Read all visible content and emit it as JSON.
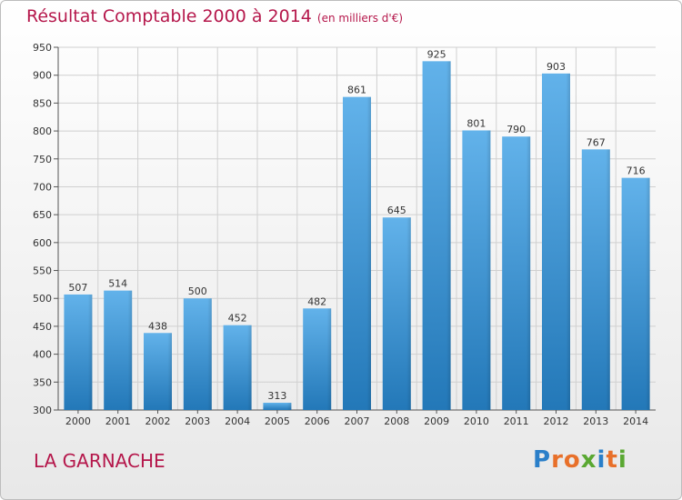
{
  "header": {
    "title": "Résultat Comptable 2000 à 2014",
    "subtitle": "(en milliers d'€)"
  },
  "footer": {
    "town": "LA GARNACHE",
    "logo_text": "Proxiti"
  },
  "colors": {
    "title": "#b5174b",
    "bar_top": "#62b2ea",
    "bar_bottom": "#2378b8",
    "grid": "#d0d0d0",
    "logo": [
      "#2a7fc9",
      "#e8702a",
      "#e8702a",
      "#5aa832",
      "#2a7fc9",
      "#e8702a",
      "#5aa832"
    ]
  },
  "chart_data": {
    "type": "bar",
    "title": "Résultat Comptable 2000 à 2014",
    "subtitle": "(en milliers d'€)",
    "xlabel": "",
    "ylabel": "",
    "categories": [
      "2000",
      "2001",
      "2002",
      "2003",
      "2004",
      "2005",
      "2006",
      "2007",
      "2008",
      "2009",
      "2010",
      "2011",
      "2012",
      "2013",
      "2014"
    ],
    "values": [
      507,
      514,
      438,
      500,
      452,
      313,
      482,
      861,
      645,
      925,
      801,
      790,
      903,
      767,
      716
    ],
    "ylim": [
      300,
      950
    ],
    "yticks": [
      300,
      350,
      400,
      450,
      500,
      550,
      600,
      650,
      700,
      750,
      800,
      850,
      900,
      950
    ],
    "grid": true,
    "data_labels": true
  }
}
